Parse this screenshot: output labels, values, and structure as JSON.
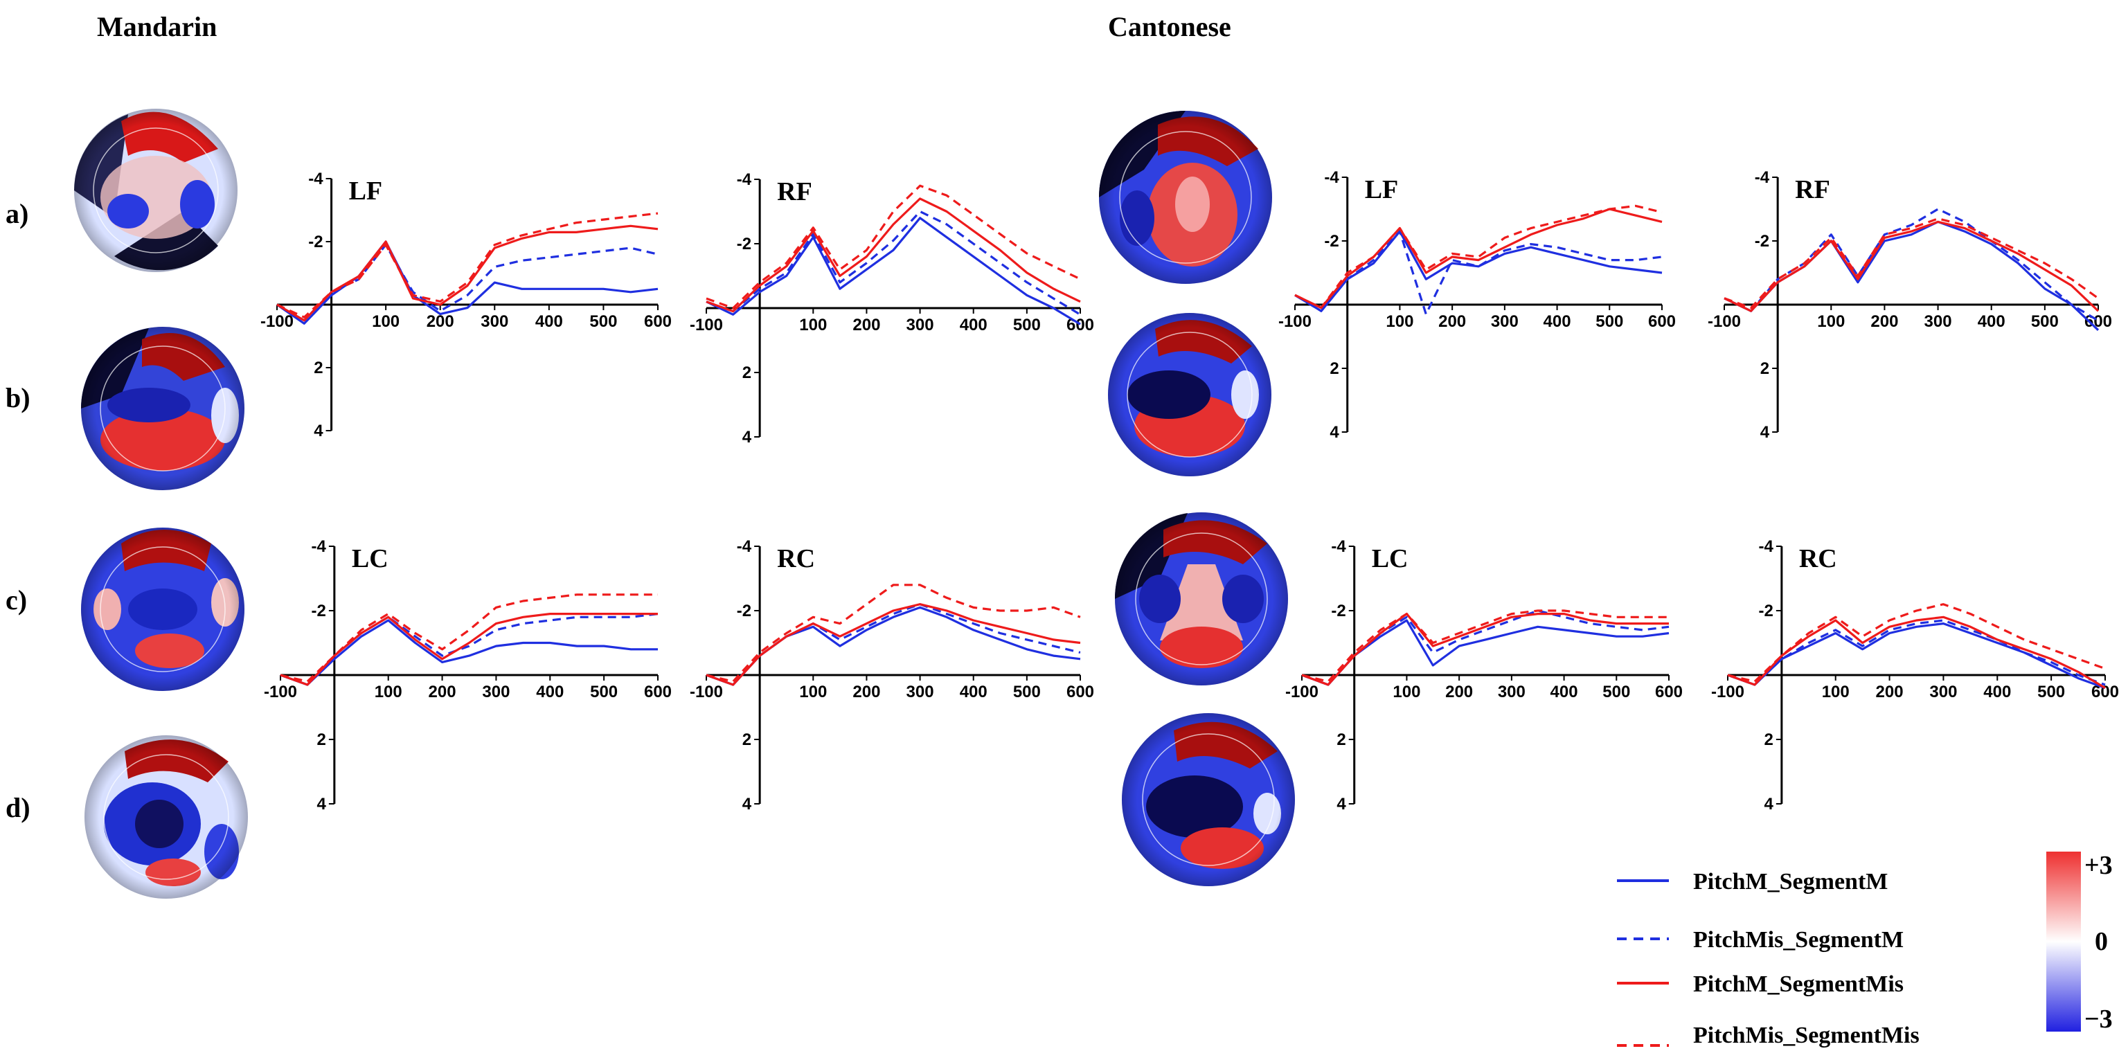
{
  "figure": {
    "language_titles": [
      "Mandarin",
      "Cantonese"
    ],
    "row_labels": [
      "a)",
      "b)",
      "c)",
      "d)"
    ]
  },
  "legend": {
    "items": [
      {
        "label": "PitchM_SegmentM",
        "color": "#1f2fe0",
        "dash": "solid"
      },
      {
        "label": "PitchMis_SegmentM",
        "color": "#1f2fe0",
        "dash": "dashed"
      },
      {
        "label": "PitchM_SegmentMis",
        "color": "#ee1b1b",
        "dash": "solid"
      },
      {
        "label": "PitchMis_SegmentMis",
        "color": "#ee1b1b",
        "dash": "dashed"
      }
    ]
  },
  "colorbar": {
    "max_label": "+3",
    "mid_label": "0",
    "min_label": "−3",
    "colors": [
      "#ee3030",
      "#ffffff",
      "#2020e0"
    ]
  },
  "topomaps": [
    {
      "language": "Mandarin",
      "row": "a)"
    },
    {
      "language": "Mandarin",
      "row": "b)"
    },
    {
      "language": "Mandarin",
      "row": "c)"
    },
    {
      "language": "Mandarin",
      "row": "d)"
    },
    {
      "language": "Cantonese",
      "row": "a)"
    },
    {
      "language": "Cantonese",
      "row": "b)"
    },
    {
      "language": "Cantonese",
      "row": "c)"
    },
    {
      "language": "Cantonese",
      "row": "d)"
    }
  ],
  "chart_data": [
    {
      "type": "line",
      "language": "Mandarin",
      "title": "LF",
      "xticks": [
        "-100",
        "100",
        "200",
        "300",
        "400",
        "500",
        "600"
      ],
      "yticks": [
        "-4",
        "-2",
        "2",
        "4"
      ],
      "xlim": [
        -100,
        600
      ],
      "ylim": [
        4,
        -4
      ],
      "x": [
        -100,
        -50,
        0,
        50,
        100,
        150,
        200,
        250,
        300,
        350,
        400,
        450,
        500,
        550,
        600
      ],
      "series": [
        {
          "name": "PitchM_SegmentM",
          "values": [
            0,
            0.6,
            -0.3,
            -0.9,
            -2.0,
            -0.3,
            0.3,
            0.1,
            -0.7,
            -0.5,
            -0.5,
            -0.5,
            -0.5,
            -0.4,
            -0.5
          ]
        },
        {
          "name": "PitchMis_SegmentM",
          "values": [
            0,
            0.5,
            -0.4,
            -0.8,
            -1.9,
            -0.4,
            0.2,
            -0.3,
            -1.2,
            -1.4,
            -1.5,
            -1.6,
            -1.7,
            -1.8,
            -1.6
          ]
        },
        {
          "name": "PitchM_SegmentMis",
          "values": [
            0,
            0.5,
            -0.4,
            -0.9,
            -2.0,
            -0.2,
            0,
            -0.6,
            -1.8,
            -2.1,
            -2.3,
            -2.3,
            -2.4,
            -2.5,
            -2.4
          ]
        },
        {
          "name": "PitchMis_SegmentMis",
          "values": [
            0,
            0.4,
            -0.4,
            -0.8,
            -1.9,
            -0.3,
            -0.1,
            -0.7,
            -1.9,
            -2.2,
            -2.4,
            -2.6,
            -2.7,
            -2.8,
            -2.9
          ]
        }
      ]
    },
    {
      "type": "line",
      "language": "Mandarin",
      "title": "RF",
      "xticks": [
        "-100",
        "100",
        "200",
        "300",
        "400",
        "500",
        "600"
      ],
      "yticks": [
        "-4",
        "-2",
        "2",
        "4"
      ],
      "xlim": [
        -100,
        600
      ],
      "ylim": [
        4,
        -4
      ],
      "x": [
        -100,
        -50,
        0,
        50,
        100,
        150,
        200,
        250,
        300,
        350,
        400,
        450,
        500,
        550,
        600
      ],
      "series": [
        {
          "name": "PitchM_SegmentM",
          "values": [
            -0.2,
            0.2,
            -0.5,
            -1.0,
            -2.2,
            -0.6,
            -1.2,
            -1.8,
            -2.8,
            -2.2,
            -1.6,
            -1.0,
            -0.4,
            0,
            0.5
          ]
        },
        {
          "name": "PitchMis_SegmentM",
          "values": [
            -0.2,
            0.1,
            -0.6,
            -1.1,
            -2.3,
            -0.8,
            -1.4,
            -2.1,
            -3.0,
            -2.6,
            -2.0,
            -1.4,
            -0.8,
            -0.3,
            0.2
          ]
        },
        {
          "name": "PitchM_SegmentMis",
          "values": [
            -0.2,
            0.1,
            -0.7,
            -1.3,
            -2.4,
            -1.0,
            -1.6,
            -2.6,
            -3.4,
            -3.0,
            -2.4,
            -1.8,
            -1.1,
            -0.6,
            -0.2
          ]
        },
        {
          "name": "PitchMis_SegmentMis",
          "values": [
            -0.3,
            0,
            -0.8,
            -1.4,
            -2.5,
            -1.2,
            -1.8,
            -3.0,
            -3.8,
            -3.5,
            -2.9,
            -2.3,
            -1.7,
            -1.3,
            -0.9
          ]
        }
      ]
    },
    {
      "type": "line",
      "language": "Mandarin",
      "title": "LC",
      "xticks": [
        "-100",
        "100",
        "200",
        "300",
        "400",
        "500",
        "600"
      ],
      "yticks": [
        "-4",
        "-2",
        "2",
        "4"
      ],
      "xlim": [
        -100,
        600
      ],
      "ylim": [
        4,
        -4
      ],
      "x": [
        -100,
        -50,
        0,
        50,
        100,
        150,
        200,
        250,
        300,
        350,
        400,
        450,
        500,
        550,
        600
      ],
      "series": [
        {
          "name": "PitchM_SegmentM",
          "values": [
            0,
            0.3,
            -0.5,
            -1.2,
            -1.7,
            -1.0,
            -0.4,
            -0.6,
            -0.9,
            -1.0,
            -1.0,
            -0.9,
            -0.9,
            -0.8,
            -0.8
          ]
        },
        {
          "name": "PitchMis_SegmentM",
          "values": [
            0,
            0.3,
            -0.6,
            -1.3,
            -1.8,
            -1.2,
            -0.6,
            -0.9,
            -1.4,
            -1.6,
            -1.7,
            -1.8,
            -1.8,
            -1.8,
            -1.9
          ]
        },
        {
          "name": "PitchM_SegmentMis",
          "values": [
            0,
            0.3,
            -0.6,
            -1.3,
            -1.8,
            -1.1,
            -0.5,
            -1.0,
            -1.6,
            -1.8,
            -1.9,
            -1.9,
            -1.9,
            -1.9,
            -1.9
          ]
        },
        {
          "name": "PitchMis_SegmentMis",
          "values": [
            0,
            0.2,
            -0.6,
            -1.4,
            -1.9,
            -1.3,
            -0.8,
            -1.4,
            -2.1,
            -2.3,
            -2.4,
            -2.5,
            -2.5,
            -2.5,
            -2.5
          ]
        }
      ]
    },
    {
      "type": "line",
      "language": "Mandarin",
      "title": "RC",
      "xticks": [
        "-100",
        "100",
        "200",
        "300",
        "400",
        "500",
        "600"
      ],
      "yticks": [
        "-4",
        "-2",
        "2",
        "4"
      ],
      "xlim": [
        -100,
        600
      ],
      "ylim": [
        4,
        -4
      ],
      "x": [
        -100,
        -50,
        0,
        50,
        100,
        150,
        200,
        250,
        300,
        350,
        400,
        450,
        500,
        550,
        600
      ],
      "series": [
        {
          "name": "PitchM_SegmentM",
          "values": [
            0,
            0.3,
            -0.6,
            -1.2,
            -1.5,
            -0.9,
            -1.4,
            -1.8,
            -2.1,
            -1.8,
            -1.4,
            -1.1,
            -0.8,
            -0.6,
            -0.5
          ]
        },
        {
          "name": "PitchMis_SegmentM",
          "values": [
            0,
            0.3,
            -0.6,
            -1.2,
            -1.6,
            -1.1,
            -1.5,
            -1.9,
            -2.2,
            -1.9,
            -1.6,
            -1.3,
            -1.1,
            -0.9,
            -0.7
          ]
        },
        {
          "name": "PitchM_SegmentMis",
          "values": [
            0,
            0.3,
            -0.6,
            -1.2,
            -1.6,
            -1.2,
            -1.6,
            -2.0,
            -2.2,
            -2.0,
            -1.7,
            -1.5,
            -1.3,
            -1.1,
            -1.0
          ]
        },
        {
          "name": "PitchMis_SegmentMis",
          "values": [
            0,
            0.2,
            -0.7,
            -1.3,
            -1.8,
            -1.6,
            -2.2,
            -2.8,
            -2.8,
            -2.4,
            -2.1,
            -2.0,
            -2.0,
            -2.1,
            -1.8
          ]
        }
      ]
    },
    {
      "type": "line",
      "language": "Cantonese",
      "title": "LF",
      "xticks": [
        "-100",
        "100",
        "200",
        "300",
        "400",
        "500",
        "600"
      ],
      "yticks": [
        "-4",
        "-2",
        "2",
        "4"
      ],
      "xlim": [
        -100,
        600
      ],
      "ylim": [
        4,
        -4
      ],
      "x": [
        -100,
        -50,
        0,
        50,
        100,
        150,
        200,
        250,
        300,
        350,
        400,
        450,
        500,
        550,
        600
      ],
      "series": [
        {
          "name": "PitchM_SegmentM",
          "values": [
            -0.3,
            0.2,
            -0.8,
            -1.3,
            -2.3,
            -0.8,
            -1.3,
            -1.2,
            -1.6,
            -1.8,
            -1.6,
            -1.4,
            -1.2,
            -1.1,
            -1.0
          ]
        },
        {
          "name": "PitchMis_SegmentM",
          "values": [
            -0.3,
            0.2,
            -0.8,
            -1.4,
            -2.3,
            0.3,
            -1.4,
            -1.2,
            -1.7,
            -1.9,
            -1.8,
            -1.6,
            -1.4,
            -1.4,
            -1.5
          ]
        },
        {
          "name": "PitchM_SegmentMis",
          "values": [
            -0.3,
            0.1,
            -0.9,
            -1.5,
            -2.4,
            -1.0,
            -1.5,
            -1.4,
            -1.8,
            -2.2,
            -2.5,
            -2.7,
            -3.0,
            -2.8,
            -2.6
          ]
        },
        {
          "name": "PitchMis_SegmentMis",
          "values": [
            -0.3,
            0.1,
            -1.0,
            -1.5,
            -2.4,
            -1.1,
            -1.6,
            -1.5,
            -2.1,
            -2.4,
            -2.6,
            -2.8,
            -3.0,
            -3.1,
            -2.9
          ]
        }
      ]
    },
    {
      "type": "line",
      "language": "Cantonese",
      "title": "RF",
      "xticks": [
        "-100",
        "100",
        "200",
        "300",
        "400",
        "500",
        "600"
      ],
      "yticks": [
        "-4",
        "-2",
        "2",
        "4"
      ],
      "xlim": [
        -100,
        600
      ],
      "ylim": [
        4,
        -4
      ],
      "x": [
        -100,
        -50,
        0,
        50,
        100,
        150,
        200,
        250,
        300,
        350,
        400,
        450,
        500,
        550,
        600
      ],
      "series": [
        {
          "name": "PitchM_SegmentM",
          "values": [
            -0.2,
            0.2,
            -0.7,
            -1.2,
            -2.0,
            -0.7,
            -2.0,
            -2.2,
            -2.6,
            -2.3,
            -1.9,
            -1.3,
            -0.5,
            0,
            0.8
          ]
        },
        {
          "name": "PitchMis_SegmentM",
          "values": [
            -0.2,
            0.2,
            -0.8,
            -1.3,
            -2.2,
            -0.9,
            -2.2,
            -2.5,
            -3.0,
            -2.6,
            -2.0,
            -1.4,
            -0.7,
            0,
            0.5
          ]
        },
        {
          "name": "PitchM_SegmentMis",
          "values": [
            -0.2,
            0.2,
            -0.7,
            -1.2,
            -2.0,
            -0.8,
            -2.1,
            -2.3,
            -2.6,
            -2.4,
            -2.0,
            -1.6,
            -1.1,
            -0.6,
            0.2
          ]
        },
        {
          "name": "PitchMis_SegmentMis",
          "values": [
            -0.2,
            0.1,
            -0.8,
            -1.3,
            -2.1,
            -0.9,
            -2.2,
            -2.4,
            -2.7,
            -2.5,
            -2.1,
            -1.7,
            -1.3,
            -0.8,
            -0.2
          ]
        }
      ]
    },
    {
      "type": "line",
      "language": "Cantonese",
      "title": "LC",
      "xticks": [
        "-100",
        "100",
        "200",
        "300",
        "400",
        "500",
        "600"
      ],
      "yticks": [
        "-4",
        "-2",
        "2",
        "4"
      ],
      "xlim": [
        -100,
        600
      ],
      "ylim": [
        4,
        -4
      ],
      "x": [
        -100,
        -50,
        0,
        50,
        100,
        150,
        200,
        250,
        300,
        350,
        400,
        450,
        500,
        550,
        600
      ],
      "series": [
        {
          "name": "PitchM_SegmentM",
          "values": [
            0,
            0.3,
            -0.6,
            -1.2,
            -1.7,
            -0.3,
            -0.9,
            -1.1,
            -1.3,
            -1.5,
            -1.4,
            -1.3,
            -1.2,
            -1.2,
            -1.3
          ]
        },
        {
          "name": "PitchMis_SegmentM",
          "values": [
            0,
            0.3,
            -0.6,
            -1.3,
            -1.8,
            -0.7,
            -1.1,
            -1.4,
            -1.7,
            -2.0,
            -1.8,
            -1.6,
            -1.5,
            -1.4,
            -1.5
          ]
        },
        {
          "name": "PitchM_SegmentMis",
          "values": [
            0,
            0.3,
            -0.6,
            -1.3,
            -1.9,
            -0.9,
            -1.2,
            -1.5,
            -1.8,
            -1.9,
            -1.9,
            -1.7,
            -1.6,
            -1.6,
            -1.6
          ]
        },
        {
          "name": "PitchMis_SegmentMis",
          "values": [
            0,
            0.2,
            -0.7,
            -1.4,
            -1.9,
            -1.0,
            -1.3,
            -1.6,
            -1.9,
            -2.0,
            -2.0,
            -1.9,
            -1.8,
            -1.8,
            -1.8
          ]
        }
      ]
    },
    {
      "type": "line",
      "language": "Cantonese",
      "title": "RC",
      "xticks": [
        "-100",
        "100",
        "200",
        "300",
        "400",
        "500",
        "600"
      ],
      "yticks": [
        "-4",
        "-2",
        "2",
        "4"
      ],
      "xlim": [
        -100,
        600
      ],
      "ylim": [
        4,
        -4
      ],
      "x": [
        -100,
        -50,
        0,
        50,
        100,
        150,
        200,
        250,
        300,
        350,
        400,
        450,
        500,
        550,
        600
      ],
      "series": [
        {
          "name": "PitchM_SegmentM",
          "values": [
            0,
            0.3,
            -0.5,
            -0.9,
            -1.3,
            -0.8,
            -1.3,
            -1.5,
            -1.6,
            -1.3,
            -1.0,
            -0.7,
            -0.3,
            0.1,
            0.4
          ]
        },
        {
          "name": "PitchMis_SegmentM",
          "values": [
            0,
            0.3,
            -0.5,
            -1.0,
            -1.4,
            -0.9,
            -1.4,
            -1.6,
            -1.7,
            -1.4,
            -1.1,
            -0.7,
            -0.4,
            0,
            0.3
          ]
        },
        {
          "name": "PitchM_SegmentMis",
          "values": [
            0,
            0.3,
            -0.6,
            -1.2,
            -1.7,
            -1.0,
            -1.5,
            -1.7,
            -1.8,
            -1.5,
            -1.1,
            -0.8,
            -0.5,
            -0.1,
            0.4
          ]
        },
        {
          "name": "PitchMis_SegmentMis",
          "values": [
            0,
            0.2,
            -0.6,
            -1.3,
            -1.8,
            -1.2,
            -1.7,
            -2.0,
            -2.2,
            -1.9,
            -1.5,
            -1.1,
            -0.8,
            -0.5,
            -0.2
          ]
        }
      ]
    }
  ]
}
